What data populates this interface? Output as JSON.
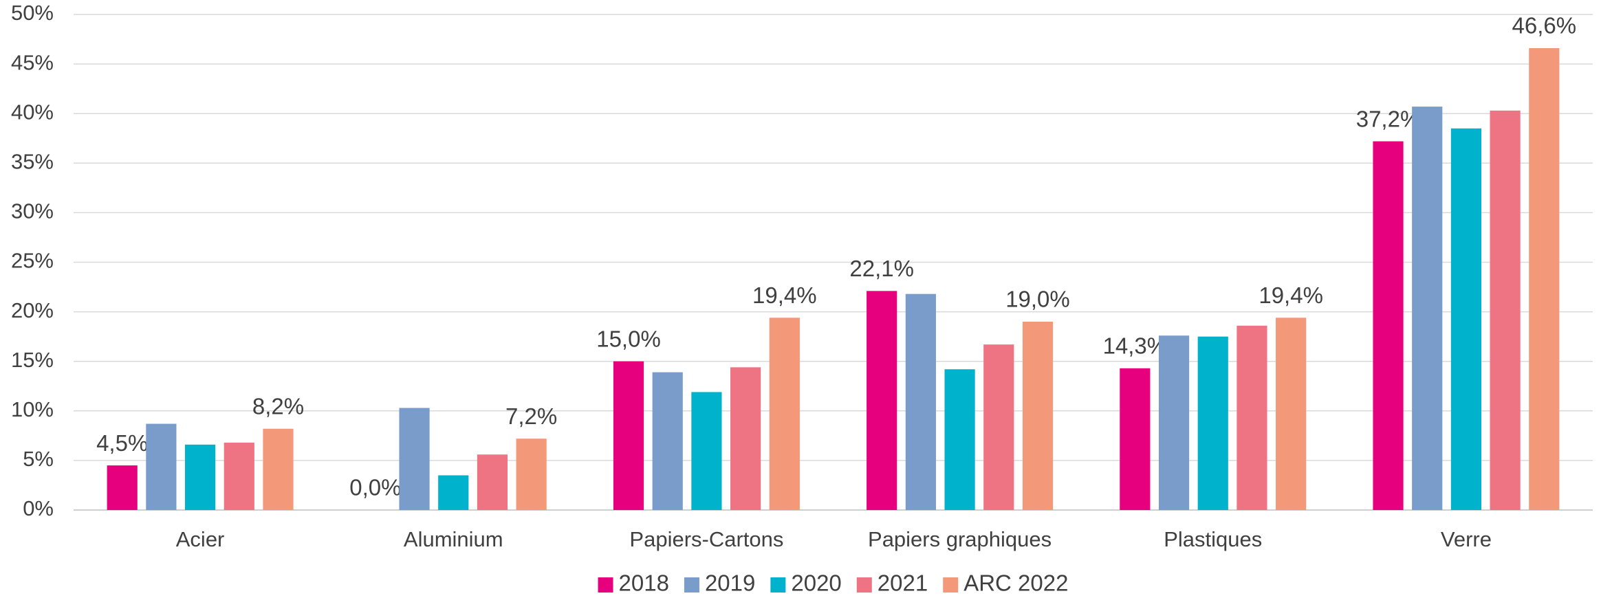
{
  "chart_data": {
    "type": "bar",
    "categories": [
      "Acier",
      "Aluminium",
      "Papiers-Cartons",
      "Papiers graphiques",
      "Plastiques",
      "Verre"
    ],
    "series": [
      {
        "name": "2018",
        "color": "#e6007e",
        "values": [
          4.5,
          0.0,
          15.0,
          22.1,
          14.3,
          37.2
        ],
        "value_labels": [
          "4,5%",
          "0,0%",
          "15,0%",
          "22,1%",
          "14,3%",
          "37,2%"
        ]
      },
      {
        "name": "2019",
        "color": "#7a9ccb",
        "values": [
          8.7,
          10.3,
          13.9,
          21.8,
          17.6,
          40.7
        ]
      },
      {
        "name": "2020",
        "color": "#00b2cc",
        "values": [
          6.6,
          3.5,
          11.9,
          14.2,
          17.5,
          38.5
        ]
      },
      {
        "name": "2021",
        "color": "#ef7483",
        "values": [
          6.8,
          5.6,
          14.4,
          16.7,
          18.6,
          40.3
        ]
      },
      {
        "name": "ARC 2022",
        "color": "#f3997a",
        "values": [
          8.2,
          7.2,
          19.4,
          19.0,
          19.4,
          46.6
        ],
        "value_labels": [
          "8,2%",
          "7,2%",
          "19,4%",
          "19,0%",
          "19,4%",
          "46,6%"
        ]
      }
    ],
    "ylim": [
      0,
      50
    ],
    "yticks": [
      {
        "value": 0,
        "label": "0%"
      },
      {
        "value": 5,
        "label": "5%"
      },
      {
        "value": 10,
        "label": "10%"
      },
      {
        "value": 15,
        "label": "15%"
      },
      {
        "value": 20,
        "label": "20%"
      },
      {
        "value": 25,
        "label": "25%"
      },
      {
        "value": 30,
        "label": "30%"
      },
      {
        "value": 35,
        "label": "35%"
      },
      {
        "value": 40,
        "label": "40%"
      },
      {
        "value": 45,
        "label": "45%"
      },
      {
        "value": 50,
        "label": "50%"
      }
    ],
    "grid": true,
    "legend": "bottom"
  }
}
